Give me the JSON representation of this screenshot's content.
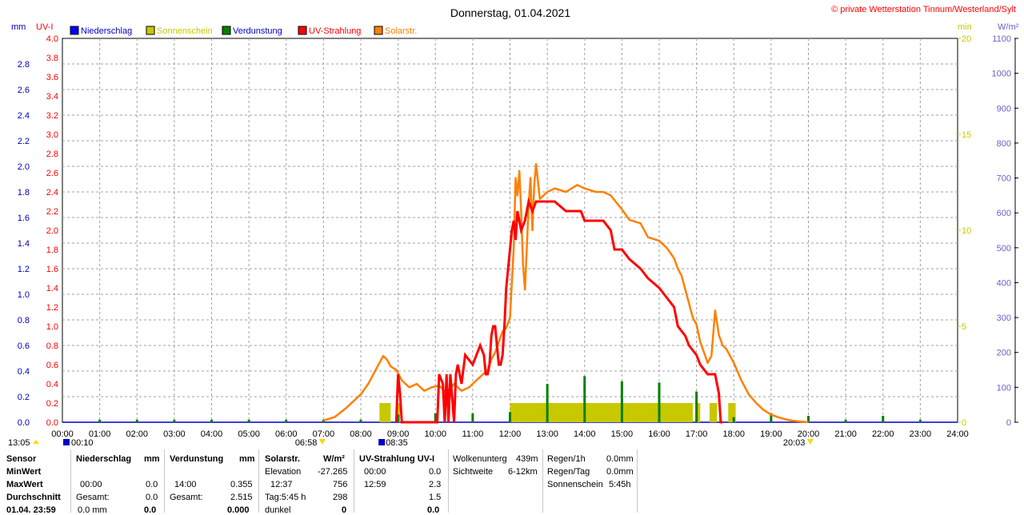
{
  "header": {
    "title": "Donnerstag, 01.04.2021",
    "credit": "© private Wetterstation Tinnum/Westerland/Sylt"
  },
  "colors": {
    "precip": "#0000ff",
    "sunshine": "#c8c800",
    "evaporation": "#008000",
    "uv": "#ff0000",
    "solar": "#ff8000",
    "grid": "#a0a0a0",
    "sunshine_axis": "#c8c800",
    "solar_axis": "#6464c8"
  },
  "chart_data": {
    "type": "line",
    "x_label_unit": "time",
    "x_range": [
      "00:00",
      "24:00"
    ],
    "x_ticks": [
      "00:00",
      "01:00",
      "02:00",
      "03:00",
      "04:00",
      "05:00",
      "06:00",
      "07:00",
      "08:00",
      "09:00",
      "10:00",
      "11:00",
      "12:00",
      "13:00",
      "14:00",
      "15:00",
      "16:00",
      "17:00",
      "18:00",
      "19:00",
      "20:00",
      "21:00",
      "22:00",
      "23:00",
      "24:00"
    ],
    "axes": {
      "mm": {
        "label": "mm",
        "range": [
          0,
          3.0
        ],
        "ticks": [
          "0.0",
          "0.2",
          "0.4",
          "0.6",
          "0.8",
          "1.0",
          "1.2",
          "1.4",
          "1.6",
          "1.8",
          "2.0",
          "2.2",
          "2.4",
          "2.6",
          "2.8"
        ]
      },
      "uv": {
        "label": "UV-I",
        "range": [
          0,
          4.0
        ],
        "ticks": [
          "0.0",
          "0.2",
          "0.4",
          "0.6",
          "0.8",
          "1.0",
          "1.2",
          "1.4",
          "1.6",
          "1.8",
          "2.0",
          "2.2",
          "2.4",
          "2.6",
          "2.8",
          "3.0",
          "3.2",
          "3.4",
          "3.6",
          "3.8",
          "4.0"
        ]
      },
      "min": {
        "label": "min",
        "range": [
          0,
          20
        ],
        "ticks": [
          "0",
          "5",
          "10",
          "15",
          "20"
        ]
      },
      "solar": {
        "label": "W/m²",
        "range": [
          0,
          1100
        ],
        "ticks": [
          "0",
          "100",
          "200",
          "300",
          "400",
          "500",
          "600",
          "700",
          "800",
          "900",
          "1000",
          "1100"
        ]
      }
    },
    "legend": [
      "Niederschlag",
      "Sonnenschein",
      "Verdunstung",
      "UV-Strahlung",
      "Solarstr."
    ],
    "series": [
      {
        "name": "Solarstr.",
        "axis": "solar",
        "x": [
          7.0,
          7.3,
          7.6,
          7.8,
          8.0,
          8.2,
          8.35,
          8.5,
          8.6,
          8.7,
          8.8,
          8.95,
          9.1,
          9.3,
          9.5,
          9.7,
          9.9,
          10.1,
          10.3,
          10.5,
          10.7,
          10.9,
          11.0,
          11.1,
          11.2,
          11.4,
          11.5,
          11.6,
          11.7,
          11.8,
          11.9,
          12.0,
          12.05,
          12.1,
          12.15,
          12.2,
          12.25,
          12.3,
          12.35,
          12.4,
          12.45,
          12.5,
          12.55,
          12.6,
          12.65,
          12.7,
          12.8,
          13.0,
          13.2,
          13.5,
          13.8,
          14.0,
          14.3,
          14.5,
          14.7,
          15.0,
          15.2,
          15.5,
          15.7,
          16.0,
          16.2,
          16.4,
          16.5,
          16.6,
          16.7,
          16.8,
          16.9,
          17.0,
          17.1,
          17.2,
          17.3,
          17.4,
          17.5,
          17.6,
          17.7,
          17.8,
          18.0,
          18.2,
          18.4,
          18.6,
          18.8,
          19.0,
          19.2,
          19.4,
          19.6,
          19.8,
          20.0
        ],
        "values": [
          5,
          15,
          40,
          60,
          80,
          110,
          140,
          170,
          190,
          180,
          160,
          150,
          120,
          100,
          110,
          90,
          100,
          105,
          85,
          110,
          90,
          100,
          110,
          120,
          130,
          150,
          180,
          200,
          230,
          260,
          270,
          300,
          400,
          500,
          700,
          650,
          720,
          600,
          450,
          380,
          500,
          620,
          700,
          550,
          680,
          740,
          640,
          660,
          670,
          660,
          680,
          670,
          660,
          660,
          650,
          610,
          580,
          570,
          530,
          520,
          500,
          470,
          440,
          420,
          380,
          340,
          300,
          280,
          230,
          200,
          170,
          190,
          320,
          250,
          220,
          210,
          170,
          120,
          80,
          55,
          35,
          22,
          14,
          8,
          4,
          2,
          0
        ]
      },
      {
        "name": "UV-Strahlung",
        "axis": "uv",
        "x": [
          8.95,
          9.0,
          9.05,
          9.1,
          9.15,
          9.2,
          9.5,
          9.9,
          10.05,
          10.1,
          10.2,
          10.25,
          10.3,
          10.35,
          10.4,
          10.5,
          10.55,
          10.6,
          10.65,
          10.7,
          10.8,
          11.0,
          11.2,
          11.3,
          11.35,
          11.4,
          11.45,
          11.5,
          11.55,
          11.6,
          11.7,
          11.75,
          11.8,
          11.85,
          11.9,
          12.0,
          12.05,
          12.1,
          12.15,
          12.2,
          12.3,
          12.4,
          12.5,
          12.6,
          12.7,
          13.0,
          13.2,
          13.5,
          13.9,
          14.0,
          14.5,
          14.7,
          14.8,
          15.0,
          15.2,
          15.5,
          15.7,
          16.0,
          16.2,
          16.4,
          16.5,
          16.7,
          16.8,
          17.0,
          17.1,
          17.3,
          17.5,
          17.6,
          17.65,
          17.7
        ],
        "values": [
          0.0,
          0.5,
          0.3,
          0.0,
          0.0,
          0.0,
          0.0,
          0.0,
          0.0,
          0.5,
          0.4,
          0.0,
          0.5,
          0.0,
          0.5,
          0.0,
          0.5,
          0.6,
          0.5,
          0.4,
          0.7,
          0.6,
          0.8,
          0.7,
          0.5,
          0.5,
          0.6,
          0.9,
          1.0,
          1.0,
          0.6,
          0.6,
          0.7,
          1.0,
          1.4,
          1.8,
          2.0,
          2.1,
          1.9,
          2.2,
          2.0,
          2.1,
          2.3,
          2.2,
          2.3,
          2.3,
          2.3,
          2.2,
          2.2,
          2.1,
          2.1,
          2.0,
          1.8,
          1.8,
          1.7,
          1.6,
          1.5,
          1.4,
          1.3,
          1.2,
          1.0,
          0.9,
          0.8,
          0.7,
          0.6,
          0.5,
          0.5,
          0.3,
          0.0,
          0.0
        ]
      },
      {
        "name": "Sonnenschein",
        "axis": "min",
        "bars": [
          [
            8.5,
            8.8
          ],
          [
            8.95,
            9.05
          ],
          [
            12.0,
            16.9
          ],
          [
            17.0,
            17.1
          ],
          [
            17.35,
            17.55
          ],
          [
            17.85,
            18.05
          ]
        ],
        "value": 1
      },
      {
        "name": "Verdunstung",
        "axis": "mm",
        "spikes": [
          [
            1.0,
            0.02
          ],
          [
            2.0,
            0.02
          ],
          [
            3.0,
            0.02
          ],
          [
            4.0,
            0.02
          ],
          [
            5.0,
            0.02
          ],
          [
            6.0,
            0.02
          ],
          [
            7.0,
            0.02
          ],
          [
            8.0,
            0.02
          ],
          [
            9.0,
            0.06
          ],
          [
            10.0,
            0.07
          ],
          [
            11.0,
            0.07
          ],
          [
            12.0,
            0.08
          ],
          [
            13.0,
            0.3
          ],
          [
            14.0,
            0.36
          ],
          [
            15.0,
            0.32
          ],
          [
            16.0,
            0.31
          ],
          [
            17.0,
            0.24
          ],
          [
            18.0,
            0.04
          ],
          [
            19.0,
            0.07
          ],
          [
            20.0,
            0.05
          ],
          [
            21.0,
            0.02
          ],
          [
            22.0,
            0.05
          ],
          [
            23.0,
            0.02
          ]
        ]
      }
    ]
  },
  "sun_markers": {
    "min_time": "13:05",
    "max_time": "00:10",
    "sunrise": "06:58",
    "uv_start": "08:35",
    "sunset": "20:03"
  },
  "table": {
    "rows": [
      "Sensor",
      "MinWert",
      "MaxWert",
      "Durchschnitt",
      "01.04. 23:59"
    ],
    "niederschlag": {
      "head": "Niederschlag",
      "unit": "mm",
      "max_time": "00:00",
      "max_val": "0.0",
      "total_label": "Gesamt:",
      "total_val": "0.0",
      "last_a": "0.0 mm",
      "last_b": "0.0"
    },
    "verdunstung": {
      "head": "Verdunstung",
      "unit": "mm",
      "max_time": "14:00",
      "max_val": "0.355",
      "total_label": "Gesamt:",
      "total_val": "2.515",
      "last_b": "0.000"
    },
    "solar": {
      "head": "Solarstr.",
      "unit": "W/m²",
      "elev_label": "Elevation",
      "elev_val": "-27.265",
      "max_time": "12:37",
      "max_val": "756",
      "day_label": "Tag:5:45 h",
      "day_val": "298",
      "dark_label": "dunkel",
      "dark_val": "0"
    },
    "uv": {
      "head": "UV-Strahlung UV-I",
      "min_time": "00:00",
      "min_val": "0.0",
      "max_time": "12:59",
      "max_val": "2.3",
      "avg_val": "1.5",
      "last_val": "0.0"
    },
    "cloud": {
      "l1": "Wolkenunterg",
      "v1": "439m",
      "l2": "Sichtweite",
      "v2": "6-12km"
    },
    "rain": {
      "l1": "Regen/1h",
      "v1": "0.0mm",
      "l2": "Regen/Tag",
      "v2": "0.0mm",
      "l3": "Sonnenschein",
      "v3": "5:45h"
    }
  }
}
